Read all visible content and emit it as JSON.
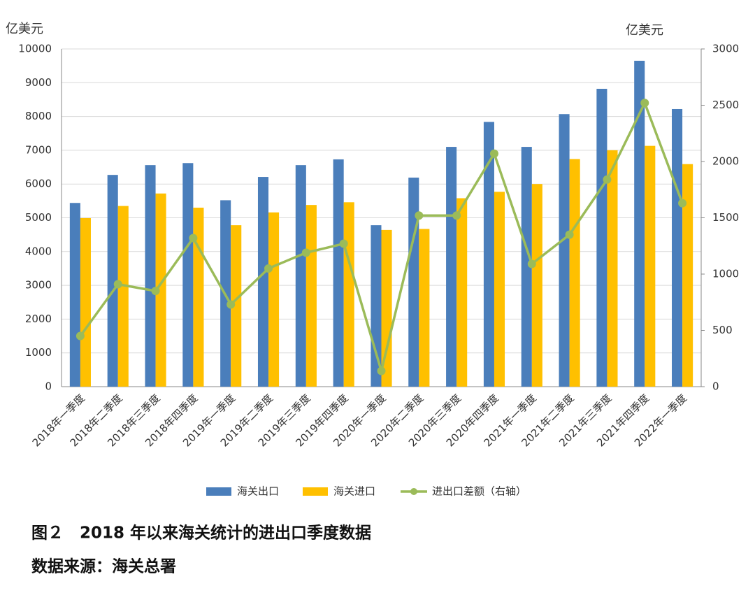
{
  "chart_data": {
    "type": "bar-line",
    "ylabel": "亿美元",
    "y2label": "亿美元",
    "categories": [
      "2018年一季度",
      "2018年二季度",
      "2018年三季度",
      "2018年四季度",
      "2019年一季度",
      "2019年二季度",
      "2019年三季度",
      "2019年四季度",
      "2020年一季度",
      "2020年二季度",
      "2020年三季度",
      "2020年四季度",
      "2021年一季度",
      "2021年二季度",
      "2021年三季度",
      "2021年四季度",
      "2022年一季度"
    ],
    "series": [
      {
        "name": "海关出口",
        "type": "bar",
        "color": "#4a7ebb",
        "values": [
          5440,
          6270,
          6560,
          6620,
          5520,
          6210,
          6560,
          6730,
          4780,
          6190,
          7100,
          7840,
          7100,
          8070,
          8820,
          9650,
          8220
        ]
      },
      {
        "name": "海关进口",
        "type": "bar",
        "color": "#ffc000",
        "values": [
          4990,
          5350,
          5720,
          5300,
          4780,
          5160,
          5380,
          5460,
          4640,
          4670,
          5580,
          5770,
          6000,
          6740,
          7000,
          7130,
          6590
        ]
      },
      {
        "name": "进出口差额（右轴）",
        "type": "line",
        "axis": "y2",
        "color": "#9bbb59",
        "values": [
          450,
          910,
          850,
          1320,
          730,
          1050,
          1190,
          1270,
          140,
          1520,
          1520,
          2070,
          1090,
          1350,
          1840,
          2520,
          1630
        ]
      }
    ],
    "ylim": [
      0,
      10000
    ],
    "yticks": [
      0,
      1000,
      2000,
      3000,
      4000,
      5000,
      6000,
      7000,
      8000,
      9000,
      10000
    ],
    "y2lim": [
      0,
      3000
    ],
    "y2ticks": [
      0,
      500,
      1000,
      1500,
      2000,
      2500,
      3000
    ],
    "grid": true,
    "legend": "bottom"
  },
  "caption": "图２　2018 年以来海关统计的进出口季度数据",
  "source": "数据来源：海关总署"
}
